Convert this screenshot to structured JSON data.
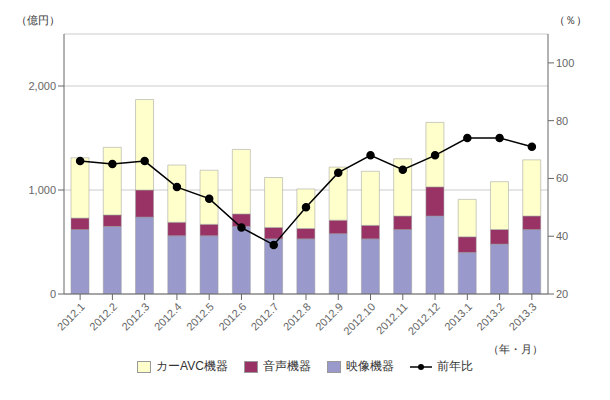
{
  "chart_data": {
    "type": "bar",
    "stacked": true,
    "categories": [
      "2012.1",
      "2012.2",
      "2012.3",
      "2012.4",
      "2012.5",
      "2012.6",
      "2012.7",
      "2012.8",
      "2012.9",
      "2012.10",
      "2012.11",
      "2012.12",
      "2013.1",
      "2013.2",
      "2013.3"
    ],
    "series": [
      {
        "name": "映像機器",
        "color": "#9999cc",
        "values": [
          620,
          650,
          740,
          560,
          560,
          650,
          530,
          530,
          580,
          530,
          620,
          750,
          400,
          480,
          620
        ]
      },
      {
        "name": "音声機器",
        "color": "#993366",
        "values": [
          110,
          110,
          260,
          130,
          110,
          120,
          110,
          100,
          130,
          130,
          130,
          280,
          150,
          140,
          130
        ]
      },
      {
        "name": "カーAVC機器",
        "color": "#ffffcc",
        "values": [
          580,
          650,
          870,
          550,
          520,
          620,
          480,
          380,
          510,
          520,
          550,
          620,
          360,
          460,
          540
        ]
      },
      {
        "name": "前年比",
        "type": "line",
        "axis": "y2",
        "color": "#000000",
        "marker": "circle",
        "values": [
          66,
          65,
          66,
          57,
          53,
          43,
          37,
          50,
          62,
          68,
          63,
          68,
          74,
          74,
          71
        ]
      }
    ],
    "ylim": [
      0,
      2500
    ],
    "yticks": [
      0,
      {
        "value": 1000,
        "label": "1,000"
      },
      {
        "value": 2000,
        "label": "2,000"
      }
    ],
    "y2lim": [
      20,
      110
    ],
    "y2ticks": [
      20,
      40,
      60,
      80,
      100
    ],
    "ylabel": "（億円）",
    "y2label": "（％）",
    "xlabel": "（年・月）",
    "grid": true,
    "legend": "bottom"
  }
}
